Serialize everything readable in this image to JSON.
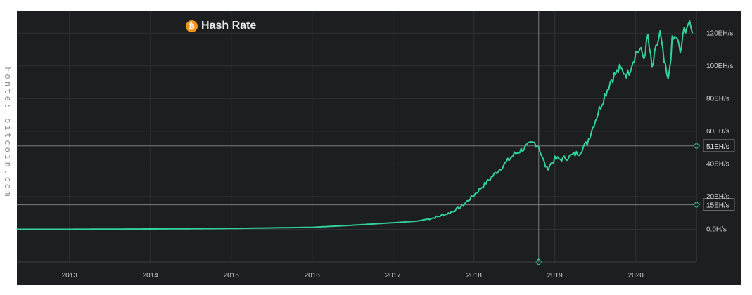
{
  "source_credit": "Fonte: bitcoin.com",
  "title": "Hash Rate",
  "icon": "bitcoin-icon",
  "colors": {
    "background": "#1d1e20",
    "line": "#33d19a",
    "grid": "#303134",
    "crosshair": "#7a7b7e"
  },
  "chart_data": {
    "type": "line",
    "title": "Hash Rate",
    "xlabel": "",
    "ylabel": "",
    "x_ticks": [
      "2013",
      "2014",
      "2015",
      "2016",
      "2017",
      "2018",
      "2019",
      "2020"
    ],
    "y_ticks": [
      "0.0H/s",
      "20EH/s",
      "40EH/s",
      "60EH/s",
      "80EH/s",
      "100EH/s",
      "120EH/s"
    ],
    "xlim": [
      2012.35,
      2020.75
    ],
    "ylim": [
      -20,
      130
    ],
    "grid": true,
    "markers": [
      {
        "label": "51EH/s",
        "value": 51
      },
      {
        "label": "15EH/s",
        "value": 15
      }
    ],
    "crosshair_x": 2018.8,
    "series": [
      {
        "x": [
          2012.35,
          2013.0,
          2014.0,
          2015.0,
          2016.0,
          2016.5,
          2017.0,
          2017.3,
          2017.5,
          2017.7,
          2017.85,
          2018.0,
          2018.1,
          2018.2,
          2018.3,
          2018.4,
          2018.5,
          2018.6,
          2018.7,
          2018.75,
          2018.8,
          2018.85,
          2018.9,
          2018.95,
          2019.0,
          2019.1,
          2019.2,
          2019.3,
          2019.4,
          2019.5,
          2019.6,
          2019.7,
          2019.75,
          2019.8,
          2019.9,
          2020.0,
          2020.05,
          2020.1,
          2020.15,
          2020.2,
          2020.25,
          2020.3,
          2020.35,
          2020.4,
          2020.45,
          2020.5,
          2020.55,
          2020.6,
          2020.65,
          2020.7
        ],
        "y": [
          0,
          0,
          0.2,
          0.5,
          1.2,
          2.5,
          4,
          5,
          7,
          10,
          14,
          21,
          26,
          31,
          36,
          41,
          46,
          49,
          52,
          53,
          51,
          43,
          37,
          40,
          43,
          43,
          45,
          47,
          53,
          67,
          80,
          92,
          95,
          98,
          95,
          108,
          110,
          105,
          118,
          98,
          110,
          120,
          102,
          90,
          115,
          118,
          108,
          122,
          126,
          120
        ]
      }
    ]
  }
}
